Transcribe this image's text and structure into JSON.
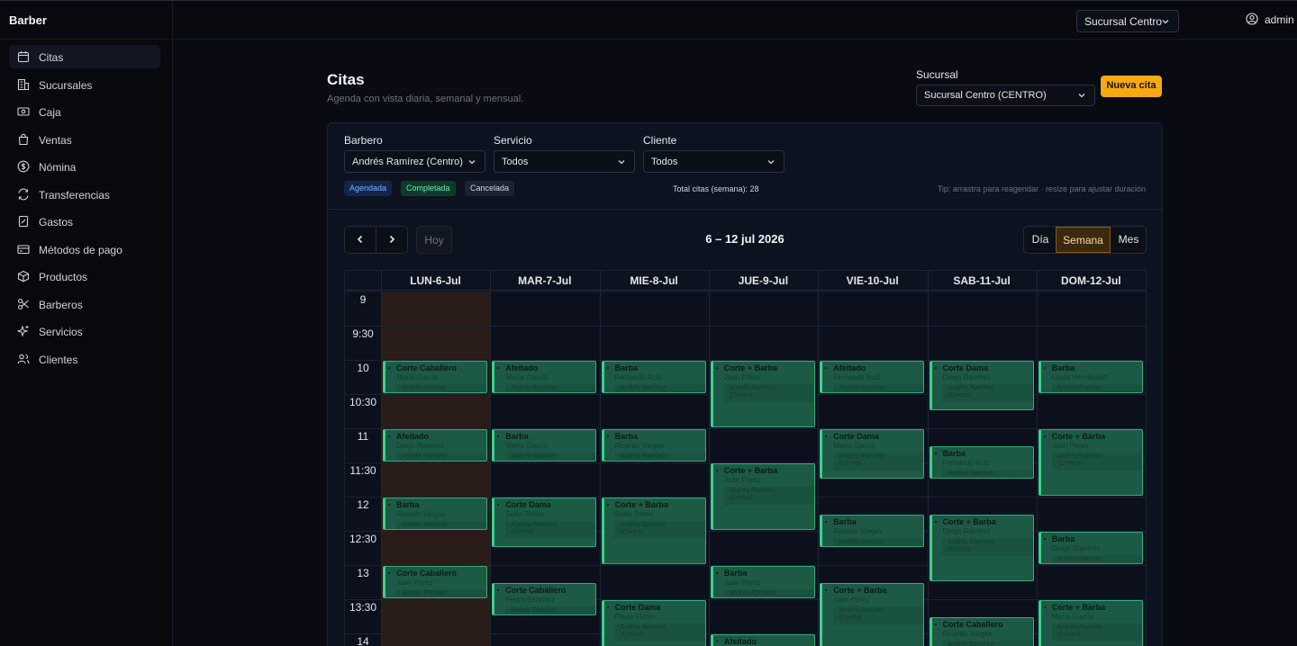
{
  "app": {
    "brand": "Barber"
  },
  "topbar": {
    "branch_select": "Sucursal Centro",
    "user": "admin"
  },
  "sidebar": {
    "items": [
      {
        "label": "Citas",
        "icon": "calendar-icon"
      },
      {
        "label": "Sucursales",
        "icon": "building-icon"
      },
      {
        "label": "Caja",
        "icon": "cash-icon"
      },
      {
        "label": "Ventas",
        "icon": "bag-icon"
      },
      {
        "label": "Nómina",
        "icon": "dollar-circle-icon"
      },
      {
        "label": "Transferencias",
        "icon": "transfer-icon"
      },
      {
        "label": "Gastos",
        "icon": "receipt-icon"
      },
      {
        "label": "Métodos de pago",
        "icon": "credit-card-icon"
      },
      {
        "label": "Productos",
        "icon": "box-icon"
      },
      {
        "label": "Barberos",
        "icon": "scissors-icon"
      },
      {
        "label": "Servicios",
        "icon": "sparkles-icon"
      },
      {
        "label": "Clientes",
        "icon": "users-icon"
      }
    ]
  },
  "page": {
    "title": "Citas",
    "subtitle": "Agenda con vista diaria, semanal y mensual.",
    "branch_label": "Sucursal",
    "branch_value": "Sucursal Centro (CENTRO)",
    "new_button": "Nueva cita"
  },
  "filters": {
    "barber_label": "Barbero",
    "barber_value": "Andrés Ramírez (Centro)",
    "service_label": "Servicio",
    "service_value": "Todos",
    "client_label": "Cliente",
    "client_value": "Todos",
    "legend": [
      "Agendada",
      "Completada",
      "Cancelada"
    ],
    "total": "Total citas (semana): 28",
    "tip": "Tip: arrastra para reagendar · resize para ajustar duración"
  },
  "calendar": {
    "today_label": "Hoy",
    "range": "6 – 12 jul 2026",
    "views": [
      "Día",
      "Semana",
      "Mes"
    ],
    "active_view": "Semana",
    "days": [
      "LUN-6-Jul",
      "MAR-7-Jul",
      "MIE-8-Jul",
      "JUE-9-Jul",
      "VIE-10-Jul",
      "SAB-11-Jul",
      "DOM-12-Jul"
    ],
    "hours": [
      "9",
      "9:30",
      "10",
      "10:30",
      "11",
      "11:30",
      "12",
      "12:30",
      "13",
      "13:30",
      "14"
    ],
    "barber_line": "Andrés Ramírez",
    "branch_line": "(Centro)",
    "appointments": [
      {
        "day": 0,
        "start": 10.0,
        "end": 10.5,
        "service": "Corte Caballero",
        "client": "María García"
      },
      {
        "day": 0,
        "start": 11.0,
        "end": 11.5,
        "service": "Afeitado",
        "client": "Diego Ramírez"
      },
      {
        "day": 0,
        "start": 12.0,
        "end": 12.5,
        "service": "Barba",
        "client": "Ricardo Vargas"
      },
      {
        "day": 0,
        "start": 13.0,
        "end": 13.5,
        "service": "Corte Caballero",
        "client": "Juan Pérez"
      },
      {
        "day": 1,
        "start": 10.0,
        "end": 10.5,
        "service": "Afeitado",
        "client": "María García"
      },
      {
        "day": 1,
        "start": 11.0,
        "end": 11.5,
        "service": "Barba",
        "client": "María García"
      },
      {
        "day": 1,
        "start": 12.0,
        "end": 12.75,
        "service": "Corte Dama",
        "client": "Sofía Torres"
      },
      {
        "day": 1,
        "start": 13.25,
        "end": 13.75,
        "service": "Corte Caballero",
        "client": "Pedro Sánchez"
      },
      {
        "day": 2,
        "start": 10.0,
        "end": 10.5,
        "service": "Barba",
        "client": "Fernando Ruiz"
      },
      {
        "day": 2,
        "start": 11.0,
        "end": 11.5,
        "service": "Barba",
        "client": "Ricardo Vargas"
      },
      {
        "day": 2,
        "start": 12.0,
        "end": 13.0,
        "service": "Corte + Barba",
        "client": "Sofía Torres"
      },
      {
        "day": 2,
        "start": 13.5,
        "end": 14.25,
        "service": "Corte Dama",
        "client": "Paula Flores"
      },
      {
        "day": 3,
        "start": 10.0,
        "end": 11.0,
        "service": "Corte + Barba",
        "client": "Juan Pérez"
      },
      {
        "day": 3,
        "start": 11.5,
        "end": 12.5,
        "service": "Corte + Barba",
        "client": "Juan Pérez"
      },
      {
        "day": 3,
        "start": 13.0,
        "end": 13.5,
        "service": "Barba",
        "client": "Juan Pérez"
      },
      {
        "day": 3,
        "start": 14.0,
        "end": 14.5,
        "service": "Afeitado",
        "client": ""
      },
      {
        "day": 4,
        "start": 10.0,
        "end": 10.5,
        "service": "Afeitado",
        "client": "Fernando Ruiz"
      },
      {
        "day": 4,
        "start": 11.0,
        "end": 11.75,
        "service": "Corte Dama",
        "client": "María García"
      },
      {
        "day": 4,
        "start": 12.25,
        "end": 12.75,
        "service": "Barba",
        "client": "Ricardo Vargas"
      },
      {
        "day": 4,
        "start": 13.25,
        "end": 14.25,
        "service": "Corte + Barba",
        "client": "Juan Pérez"
      },
      {
        "day": 5,
        "start": 10.0,
        "end": 10.75,
        "service": "Corte Dama",
        "client": "Diego Ramírez"
      },
      {
        "day": 5,
        "start": 11.25,
        "end": 11.75,
        "service": "Barba",
        "client": "Fernando Ruiz"
      },
      {
        "day": 5,
        "start": 12.25,
        "end": 13.25,
        "service": "Corte + Barba",
        "client": "Diego Ramírez"
      },
      {
        "day": 5,
        "start": 13.75,
        "end": 14.5,
        "service": "Corte Caballero",
        "client": "Ricardo Vargas"
      },
      {
        "day": 6,
        "start": 10.0,
        "end": 10.5,
        "service": "Barba",
        "client": "Laura Hernández"
      },
      {
        "day": 6,
        "start": 11.0,
        "end": 12.0,
        "service": "Corte + Barba",
        "client": "Juan Pérez"
      },
      {
        "day": 6,
        "start": 12.5,
        "end": 13.0,
        "service": "Barba",
        "client": "Diego Ramírez"
      },
      {
        "day": 6,
        "start": 13.5,
        "end": 14.25,
        "service": "Corte + Barba",
        "client": "María García"
      }
    ]
  },
  "colors": {
    "accent": "#f5a914",
    "appointment_fill": "#1d5a45",
    "appointment_border": "#3bd08f",
    "today_column": "#2a1c18"
  }
}
